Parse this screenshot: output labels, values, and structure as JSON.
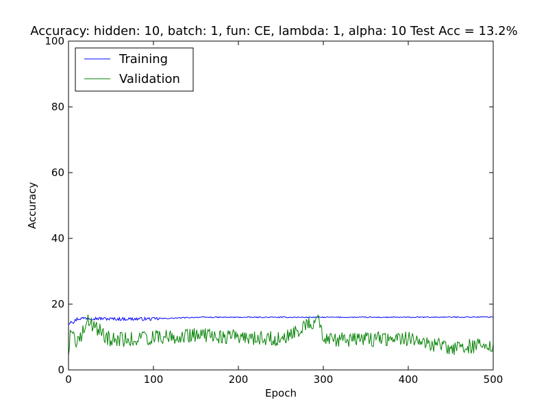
{
  "chart_data": {
    "type": "line",
    "title": "Accuracy: hidden: 10, batch: 1, fun: CE, lambda: 1, alpha: 10  Test Acc = 13.2%",
    "xlabel": "Epoch",
    "ylabel": "Accuracy",
    "xlim": [
      0,
      500
    ],
    "ylim": [
      0,
      100
    ],
    "xticks": [
      0,
      100,
      200,
      300,
      400,
      500
    ],
    "yticks": [
      0,
      20,
      40,
      60,
      80,
      100
    ],
    "grid": false,
    "legend_position": "top-left",
    "series": [
      {
        "name": "Training",
        "color": "#0000ff",
        "x_range": [
          0,
          500
        ],
        "points_count": 500,
        "approx": "starts near 14, rises to about 15.5-16 within 20 epochs, then stays flat around 16 with small noise",
        "key_points": [
          [
            0,
            14.0
          ],
          [
            3,
            15.0
          ],
          [
            6,
            14.5
          ],
          [
            10,
            15.5
          ],
          [
            20,
            15.8
          ],
          [
            50,
            15.5
          ],
          [
            100,
            15.5
          ],
          [
            150,
            16.0
          ],
          [
            200,
            16.0
          ],
          [
            300,
            16.0
          ],
          [
            400,
            16.0
          ],
          [
            500,
            16.1
          ]
        ]
      },
      {
        "name": "Validation",
        "color": "#008000",
        "x_range": [
          0,
          500
        ],
        "points_count": 500,
        "approx": "noisy between about 5 and 15, mean about 9-10, early dip near 4.5, spikes near 15 at epochs ~22 and ~295",
        "key_points": [
          [
            0,
            4.5
          ],
          [
            2,
            12.0
          ],
          [
            10,
            8.0
          ],
          [
            22,
            15.0
          ],
          [
            50,
            9.0
          ],
          [
            100,
            10.0
          ],
          [
            150,
            10.5
          ],
          [
            200,
            10.0
          ],
          [
            250,
            9.5
          ],
          [
            295,
            15.5
          ],
          [
            300,
            9.0
          ],
          [
            400,
            9.5
          ],
          [
            450,
            6.5
          ],
          [
            500,
            8.0
          ]
        ]
      }
    ]
  }
}
